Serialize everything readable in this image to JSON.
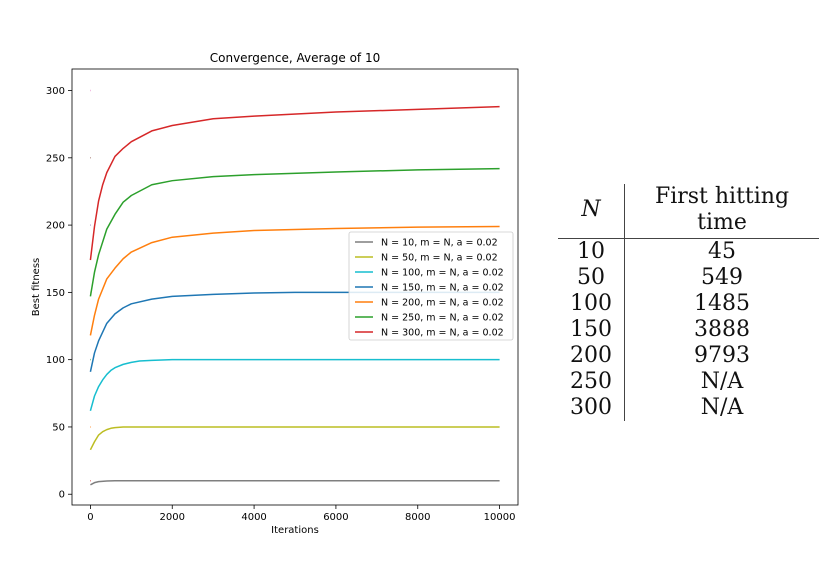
{
  "chart_data": {
    "type": "line",
    "title": "Convergence, Average of 10",
    "xlabel": "Iterations",
    "ylabel": "Best fitness",
    "xlim": [
      -450,
      10450
    ],
    "ylim": [
      -8,
      316
    ],
    "xticks": [
      0,
      2000,
      4000,
      6000,
      8000,
      10000
    ],
    "yticks": [
      0,
      50,
      100,
      150,
      200,
      250,
      300
    ],
    "grid": false,
    "legend_position": "center-right",
    "legend": [
      {
        "label": "N = 10, m = N, a = 0.02",
        "color": "#7f7f7f"
      },
      {
        "label": "N = 50, m = N, a = 0.02",
        "color": "#bcbd22"
      },
      {
        "label": "N = 100, m = N, a = 0.02",
        "color": "#17becf"
      },
      {
        "label": "N = 150, m = N, a = 0.02",
        "color": "#1f77b4"
      },
      {
        "label": "N = 200, m = N, a = 0.02",
        "color": "#ff7f0e"
      },
      {
        "label": "N = 250, m = N, a = 0.02",
        "color": "#2ca02c"
      },
      {
        "label": "N = 300, m = N, a = 0.02",
        "color": "#d62728"
      }
    ],
    "series": [
      {
        "color": "#d62728",
        "x": [
          0,
          1,
          2,
          4,
          6,
          8,
          10,
          12
        ],
        "y": [
          10,
          10,
          10,
          10,
          10,
          10,
          10,
          10
        ]
      },
      {
        "color": "#ff7f0e",
        "x": [
          0,
          1,
          2,
          4,
          6,
          8,
          10,
          12
        ],
        "y": [
          50,
          50,
          50,
          50,
          50,
          50,
          50,
          50
        ]
      },
      {
        "color": "#2ca02c",
        "x": [
          0,
          1,
          2,
          4,
          6,
          8,
          10,
          12
        ],
        "y": [
          100,
          100,
          100,
          100,
          100,
          100,
          100,
          100
        ]
      },
      {
        "color": "#d62728",
        "x": [
          0,
          1,
          2,
          4,
          6,
          8,
          10,
          12
        ],
        "y": [
          150,
          150,
          150,
          150,
          150,
          150,
          150,
          150
        ]
      },
      {
        "color": "#9467bd",
        "x": [
          0,
          1,
          2,
          4,
          6,
          8,
          10,
          12
        ],
        "y": [
          200,
          200,
          200,
          200,
          200,
          200,
          200,
          200
        ]
      },
      {
        "color": "#8c564b",
        "x": [
          0,
          1,
          2,
          4,
          6,
          8,
          10,
          12
        ],
        "y": [
          250,
          250,
          250,
          250,
          250,
          250,
          250,
          250
        ]
      },
      {
        "color": "#e377c2",
        "x": [
          0,
          1,
          2,
          4,
          6,
          8,
          10,
          12
        ],
        "y": [
          300,
          300,
          300,
          300,
          300,
          300,
          300,
          300
        ]
      },
      {
        "color": "#7f7f7f",
        "x": [
          0,
          100,
          200,
          400,
          600,
          800,
          1000,
          10000
        ],
        "y": [
          7,
          8.6,
          9.4,
          9.8,
          10,
          10,
          10,
          10
        ]
      },
      {
        "color": "#bcbd22",
        "x": [
          0,
          100,
          200,
          300,
          400,
          500,
          600,
          800,
          1000,
          10000
        ],
        "y": [
          33,
          39,
          44,
          46.5,
          48,
          49,
          49.5,
          50,
          50,
          50
        ]
      },
      {
        "color": "#17becf",
        "x": [
          0,
          100,
          200,
          300,
          400,
          500,
          600,
          800,
          1000,
          1200,
          1500,
          2000,
          10000
        ],
        "y": [
          62,
          73,
          80,
          85,
          89,
          92,
          94,
          96.5,
          98,
          99,
          99.5,
          100,
          100
        ]
      },
      {
        "color": "#1f77b4",
        "x": [
          0,
          100,
          200,
          400,
          600,
          800,
          1000,
          1500,
          2000,
          3000,
          4000,
          5000,
          10000
        ],
        "y": [
          91,
          105,
          114,
          127,
          134,
          138.5,
          141.5,
          145,
          147,
          148.5,
          149.5,
          150,
          150
        ]
      },
      {
        "color": "#ff7f0e",
        "x": [
          0,
          100,
          200,
          400,
          600,
          800,
          1000,
          1500,
          2000,
          3000,
          4000,
          6000,
          8000,
          10000
        ],
        "y": [
          118,
          133,
          145,
          160,
          168,
          175,
          180,
          187,
          191,
          194,
          196,
          197.5,
          198.5,
          199
        ]
      },
      {
        "color": "#2ca02c",
        "x": [
          0,
          100,
          200,
          400,
          600,
          800,
          1000,
          1500,
          2000,
          3000,
          4000,
          6000,
          8000,
          10000
        ],
        "y": [
          147,
          165,
          178,
          197,
          208,
          217,
          222,
          230,
          233,
          236,
          237.5,
          239.5,
          241,
          242
        ]
      },
      {
        "color": "#d62728",
        "x": [
          0,
          100,
          200,
          300,
          400,
          600,
          800,
          1000,
          1500,
          2000,
          3000,
          4000,
          6000,
          8000,
          10000
        ],
        "y": [
          174,
          199,
          218,
          230,
          239,
          251,
          257,
          262,
          270,
          274,
          279,
          281,
          284,
          286,
          288
        ]
      }
    ]
  },
  "table": {
    "headers": [
      "N",
      "First hitting time"
    ],
    "rows": [
      [
        "10",
        "45"
      ],
      [
        "50",
        "549"
      ],
      [
        "100",
        "1485"
      ],
      [
        "150",
        "3888"
      ],
      [
        "200",
        "9793"
      ],
      [
        "250",
        "N/A"
      ],
      [
        "300",
        "N/A"
      ]
    ]
  }
}
